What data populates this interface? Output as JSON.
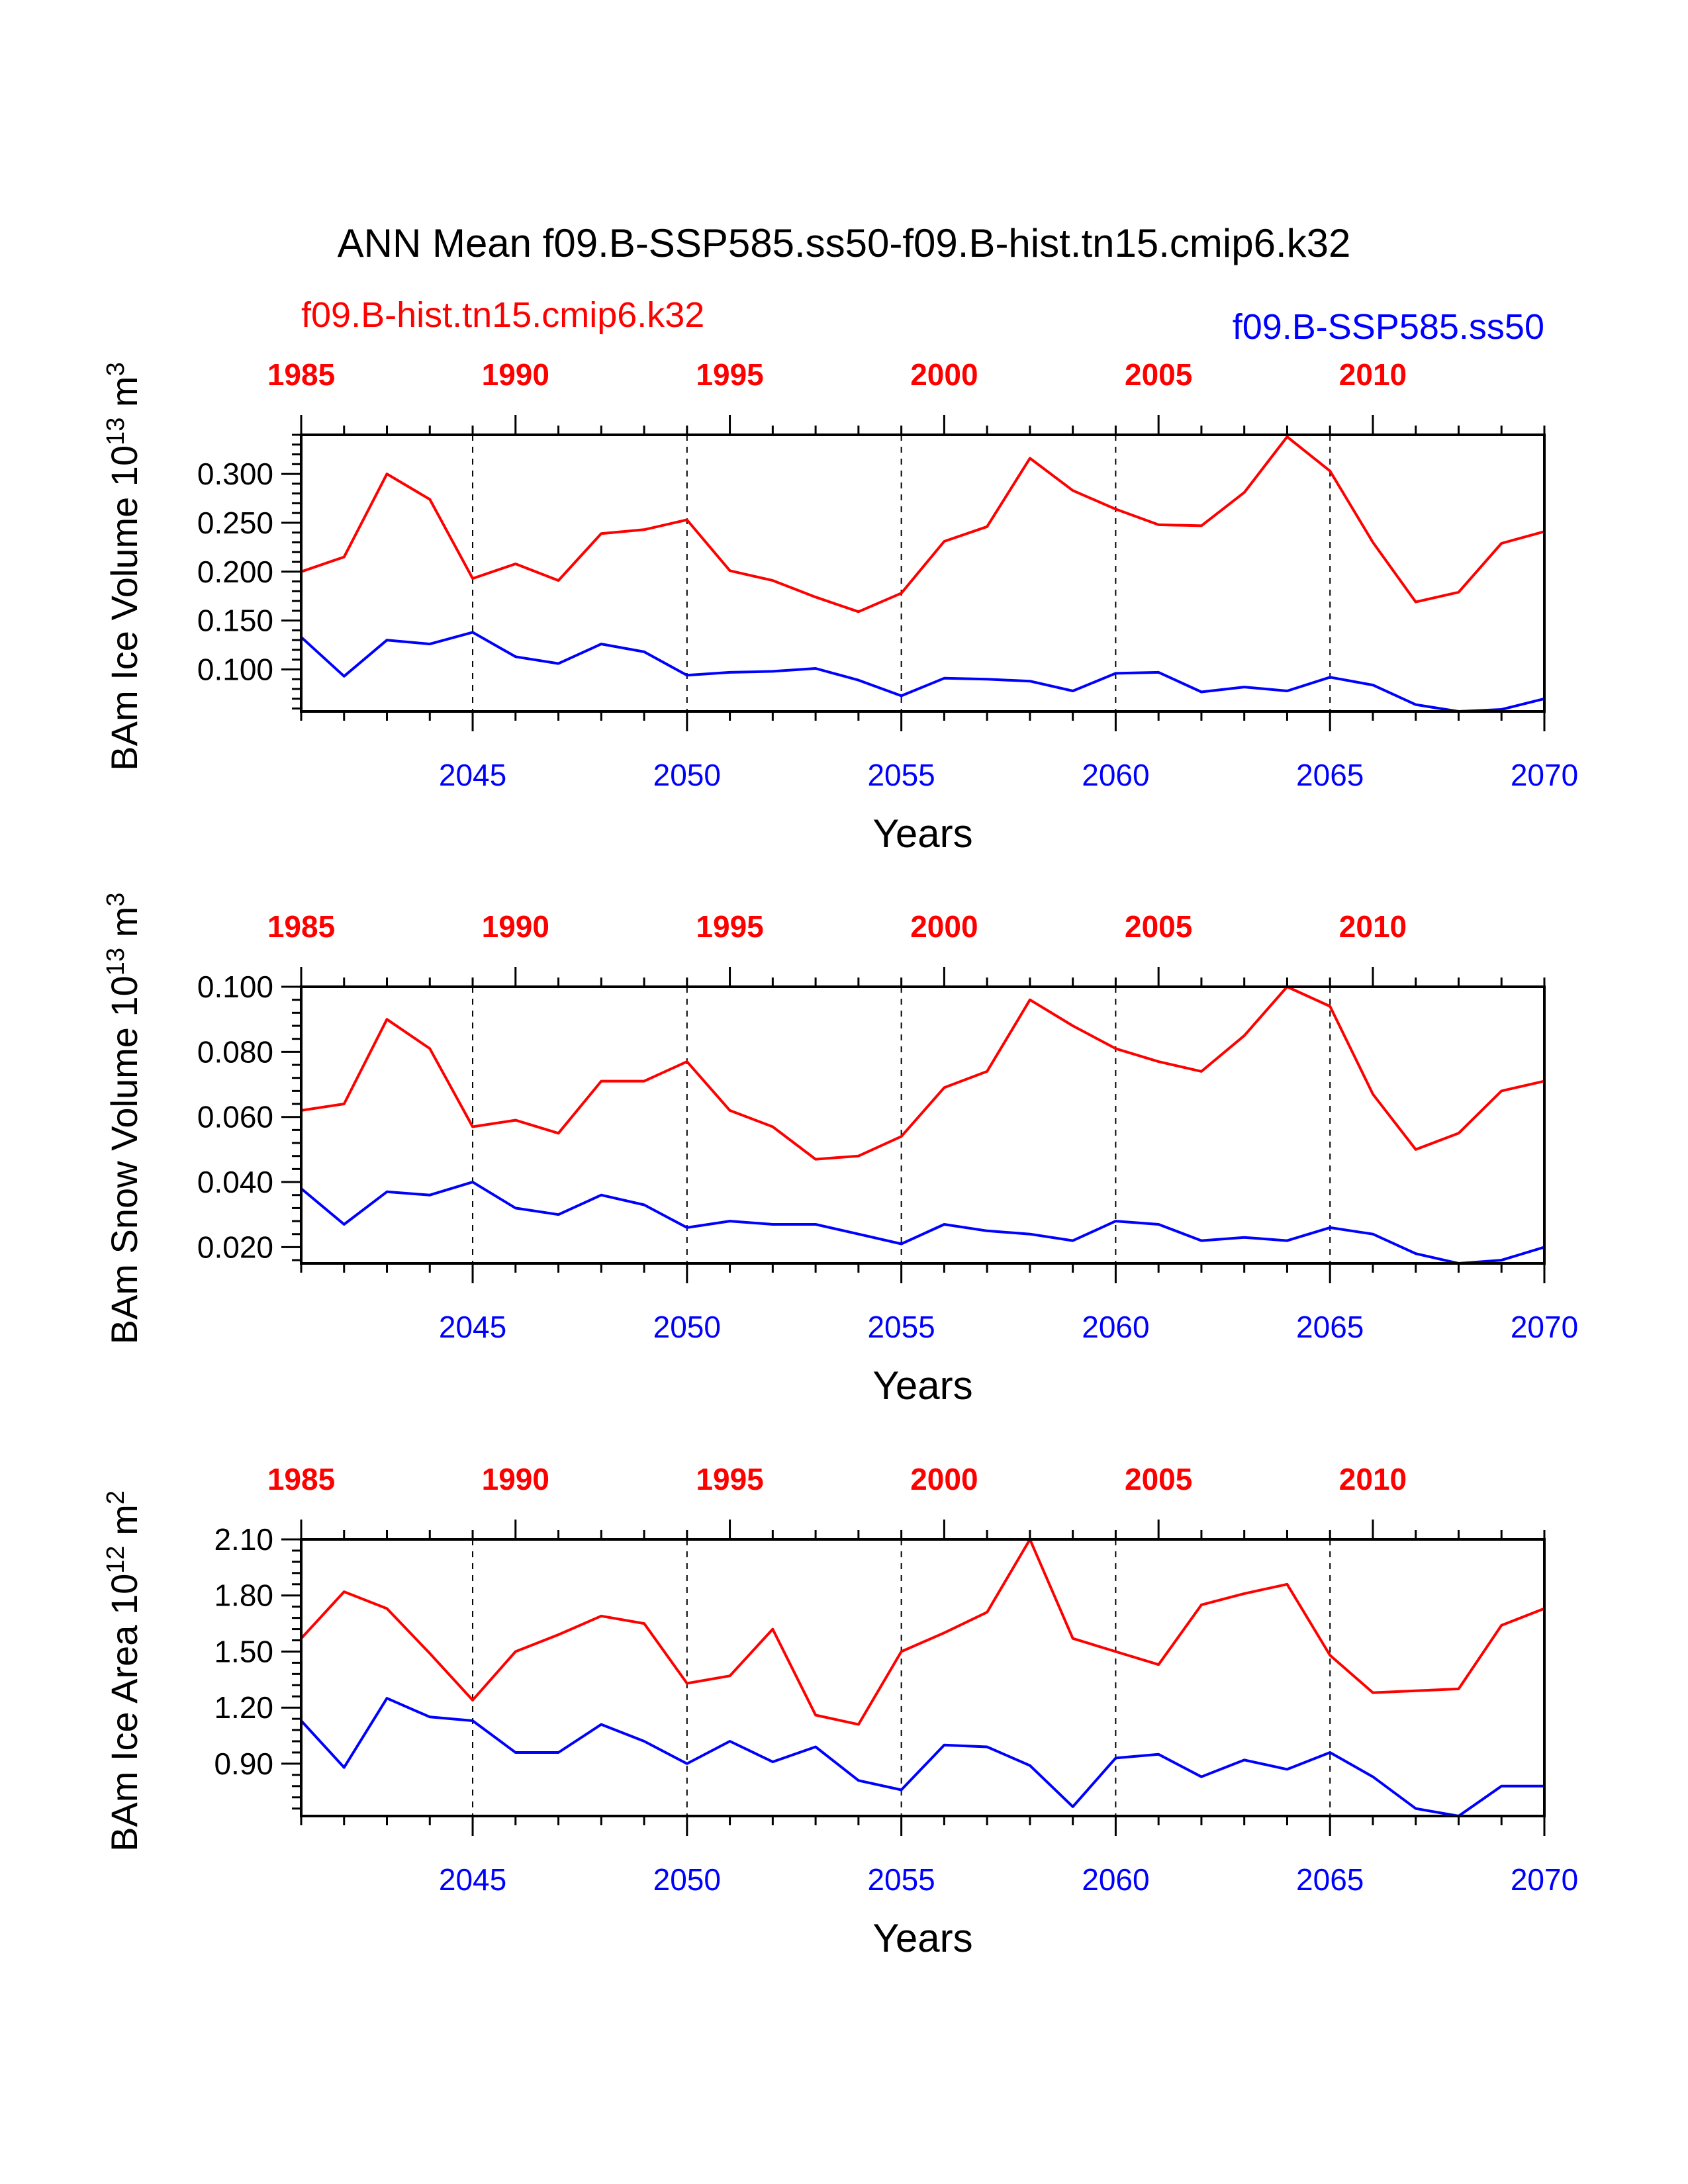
{
  "title": "ANN Mean f09.B-SSP585.ss50-f09.B-hist.tn15.cmip6.k32",
  "legend": {
    "red_label": "f09.B-hist.tn15.cmip6.k32",
    "blue_label": "f09.B-SSP585.ss50"
  },
  "colors": {
    "red": "#ff0000",
    "blue": "#0000ff",
    "axis": "#000000"
  },
  "chart_data": [
    {
      "type": "line",
      "ylabel": "BAm Ice Volume 10",
      "ylabel_exp": "13",
      "ylabel_unit": " m",
      "ylabel_unit_exp": "3",
      "xlabel": "Years",
      "y_ticks": [
        "0.100",
        "0.150",
        "0.200",
        "0.250",
        "0.300"
      ],
      "y_tick_values": [
        0.1,
        0.15,
        0.2,
        0.25,
        0.3
      ],
      "ylim": [
        0.057,
        0.34
      ],
      "top_x_ticks": [
        "1985",
        "1990",
        "1995",
        "2000",
        "2005",
        "2010"
      ],
      "bottom_x_ticks": [
        "2045",
        "2050",
        "2055",
        "2060",
        "2065",
        "2070"
      ],
      "series": [
        {
          "name": "f09.B-hist.tn15.cmip6.k32",
          "color": "red",
          "values": [
            0.2,
            0.215,
            0.3,
            0.274,
            0.193,
            0.208,
            0.191,
            0.239,
            0.243,
            0.253,
            0.201,
            0.191,
            0.174,
            0.159,
            0.178,
            0.231,
            0.246,
            0.316,
            0.283,
            0.264,
            0.248,
            0.247,
            0.281,
            0.338,
            0.303,
            0.23,
            0.169,
            0.179,
            0.229,
            0.241
          ]
        },
        {
          "name": "f09.B-SSP585.ss50",
          "color": "blue",
          "values": [
            0.133,
            0.093,
            0.13,
            0.126,
            0.138,
            0.113,
            0.106,
            0.126,
            0.118,
            0.094,
            0.097,
            0.098,
            0.101,
            0.089,
            0.073,
            0.091,
            0.09,
            0.088,
            0.078,
            0.096,
            0.097,
            0.077,
            0.082,
            0.078,
            0.092,
            0.084,
            0.064,
            0.057,
            0.059,
            0.07
          ]
        }
      ]
    },
    {
      "type": "line",
      "ylabel": "BAm Snow Volume 10",
      "ylabel_exp": "13",
      "ylabel_unit": " m",
      "ylabel_unit_exp": "3",
      "xlabel": "Years",
      "y_ticks": [
        "0.020",
        "0.040",
        "0.060",
        "0.080",
        "0.100"
      ],
      "y_tick_values": [
        0.02,
        0.04,
        0.06,
        0.08,
        0.1
      ],
      "ylim": [
        0.015,
        0.1
      ],
      "top_x_ticks": [
        "1985",
        "1990",
        "1995",
        "2000",
        "2005",
        "2010"
      ],
      "bottom_x_ticks": [
        "2045",
        "2050",
        "2055",
        "2060",
        "2065",
        "2070"
      ],
      "series": [
        {
          "name": "f09.B-hist.tn15.cmip6.k32",
          "color": "red",
          "values": [
            0.062,
            0.064,
            0.09,
            0.081,
            0.057,
            0.059,
            0.055,
            0.071,
            0.071,
            0.077,
            0.062,
            0.057,
            0.047,
            0.048,
            0.054,
            0.069,
            0.074,
            0.096,
            0.088,
            0.081,
            0.077,
            0.074,
            0.085,
            0.1,
            0.094,
            0.067,
            0.05,
            0.055,
            0.068,
            0.071
          ]
        },
        {
          "name": "f09.B-SSP585.ss50",
          "color": "blue",
          "values": [
            0.038,
            0.027,
            0.037,
            0.036,
            0.04,
            0.032,
            0.03,
            0.036,
            0.033,
            0.026,
            0.028,
            0.027,
            0.027,
            0.024,
            0.021,
            0.027,
            0.025,
            0.024,
            0.022,
            0.028,
            0.027,
            0.022,
            0.023,
            0.022,
            0.026,
            0.024,
            0.018,
            0.015,
            0.016,
            0.02
          ]
        }
      ]
    },
    {
      "type": "line",
      "ylabel": "BAm Ice Area 10",
      "ylabel_exp": "12",
      "ylabel_unit": " m",
      "ylabel_unit_exp": "2",
      "xlabel": "Years",
      "y_ticks": [
        "0.90",
        "1.20",
        "1.50",
        "1.80",
        "2.10"
      ],
      "y_tick_values": [
        0.9,
        1.2,
        1.5,
        1.8,
        2.1
      ],
      "ylim": [
        0.62,
        2.1
      ],
      "top_x_ticks": [
        "1985",
        "1990",
        "1995",
        "2000",
        "2005",
        "2010"
      ],
      "bottom_x_ticks": [
        "2045",
        "2050",
        "2055",
        "2060",
        "2065",
        "2070"
      ],
      "series": [
        {
          "name": "f09.B-hist.tn15.cmip6.k32",
          "color": "red",
          "values": [
            1.57,
            1.82,
            1.73,
            1.49,
            1.24,
            1.5,
            1.59,
            1.69,
            1.65,
            1.33,
            1.37,
            1.62,
            1.16,
            1.11,
            1.5,
            1.6,
            1.71,
            2.1,
            1.57,
            1.5,
            1.43,
            1.75,
            1.81,
            1.86,
            1.48,
            1.28,
            1.29,
            1.3,
            1.64,
            1.73
          ]
        },
        {
          "name": "f09.B-SSP585.ss50",
          "color": "blue",
          "values": [
            1.13,
            0.88,
            1.25,
            1.15,
            1.13,
            0.96,
            0.96,
            1.11,
            1.02,
            0.9,
            1.02,
            0.91,
            0.99,
            0.81,
            0.76,
            1.0,
            0.99,
            0.89,
            0.67,
            0.93,
            0.95,
            0.83,
            0.92,
            0.87,
            0.96,
            0.83,
            0.66,
            0.62,
            0.78,
            0.78
          ]
        }
      ]
    }
  ]
}
